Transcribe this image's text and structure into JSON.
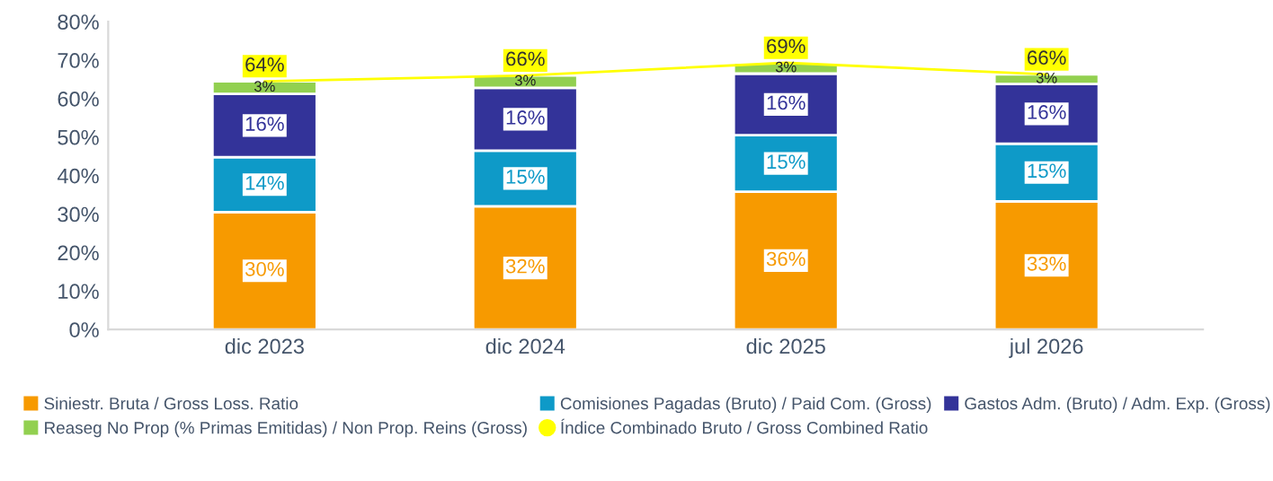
{
  "chart_data": {
    "type": "bar",
    "stacked": true,
    "categories": [
      "dic 2023",
      "dic 2024",
      "dic 2025",
      "jul 2026"
    ],
    "series": [
      {
        "name": "Siniestr. Bruta / Gross Loss. Ratio",
        "color": "#f79a00",
        "values": [
          30.5,
          32,
          35.8,
          33.3
        ],
        "value_labels": [
          "30%",
          "32%",
          "36%",
          "33%"
        ]
      },
      {
        "name": "Comisiones Pagadas (Bruto) / Paid Com. (Gross)",
        "color": "#0e9ac8",
        "values": [
          14.3,
          14.5,
          14.7,
          15
        ],
        "value_labels": [
          "14%",
          "15%",
          "15%",
          "15%"
        ]
      },
      {
        "name": "Gastos Adm. (Bruto) / Adm. Exp. (Gross)",
        "color": "#333399",
        "values": [
          16.4,
          16.3,
          16,
          15.5
        ],
        "value_labels": [
          "16%",
          "16%",
          "16%",
          "16%"
        ]
      },
      {
        "name": "Reaseg No Prop (% Primas Emitidas) / Non Prop. Reins (Gross)",
        "color": "#92d050",
        "values": [
          3.3,
          3.2,
          2.8,
          2.5
        ],
        "value_labels": [
          "3%",
          "3%",
          "3%",
          "3%"
        ]
      },
      {
        "name": "Índice Combinado Bruto / Gross Combined Ratio",
        "type": "line",
        "color": "#ffff00",
        "values": [
          64.5,
          66,
          69.3,
          66.3
        ],
        "value_labels": [
          "64%",
          "66%",
          "69%",
          "66%"
        ]
      }
    ],
    "ylim": [
      0,
      80
    ],
    "yticks": [
      {
        "value": 0,
        "label": "0%"
      },
      {
        "value": 10,
        "label": "10%"
      },
      {
        "value": 20,
        "label": "20%"
      },
      {
        "value": 30,
        "label": "30%"
      },
      {
        "value": 40,
        "label": "40%"
      },
      {
        "value": 50,
        "label": "50%"
      },
      {
        "value": 60,
        "label": "60%"
      },
      {
        "value": 70,
        "label": "70%"
      },
      {
        "value": 80,
        "label": "80%"
      }
    ],
    "grid": false,
    "legend": "bottom"
  }
}
